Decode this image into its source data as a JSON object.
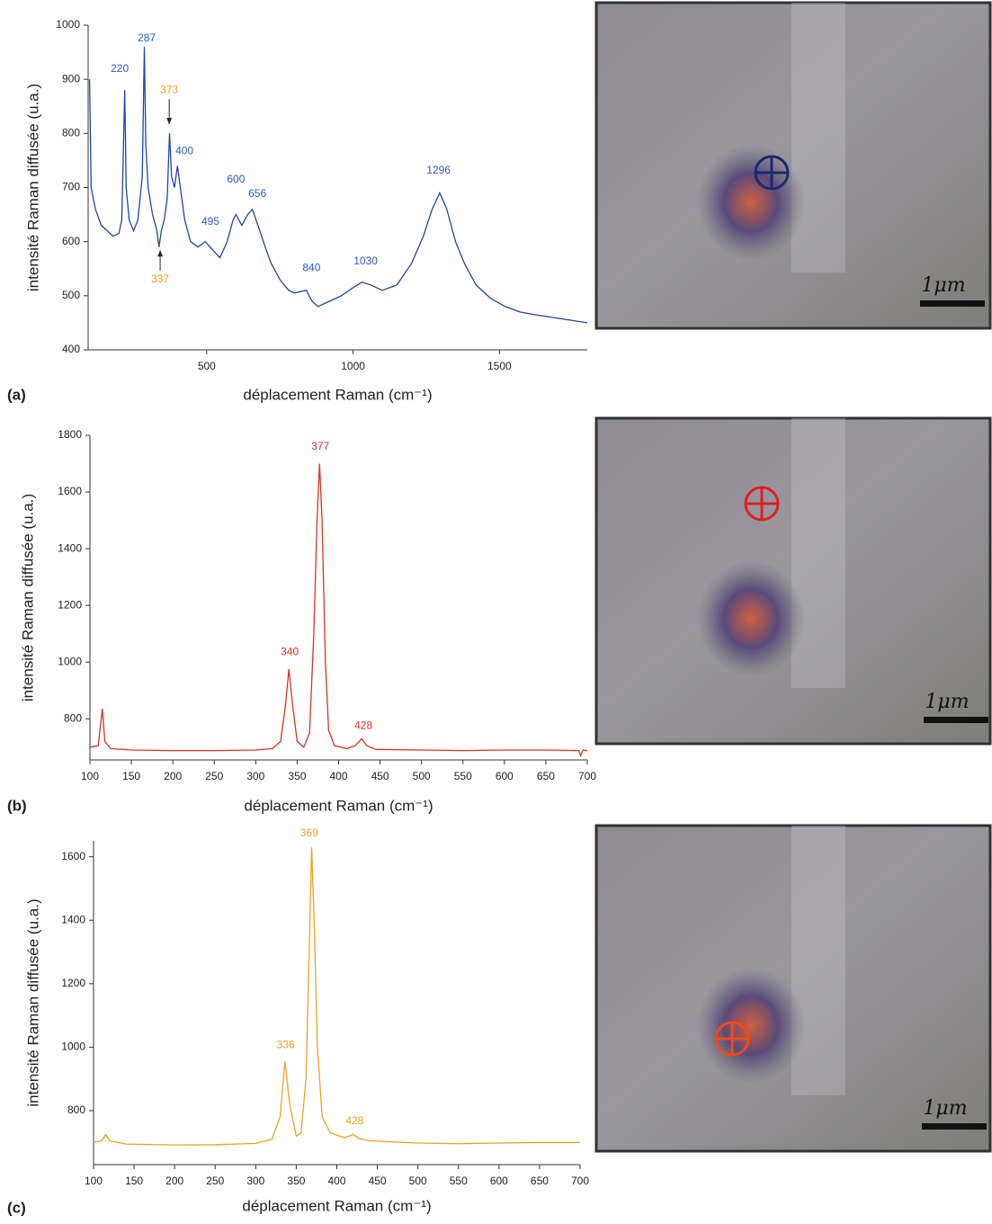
{
  "chart_data": [
    {
      "type": "line",
      "panel_label": "(a)",
      "y_label": "intensité Raman diffusée (u.a.)",
      "x_label": "déplacement Raman (cm⁻¹)",
      "xlim": [
        95,
        1800
      ],
      "ylim": [
        400,
        1000
      ],
      "xticks": [
        500,
        1000,
        1500
      ],
      "yticks": [
        400,
        500,
        600,
        700,
        800,
        900,
        1000
      ],
      "color": "#2244aa",
      "x": [
        100,
        105,
        120,
        140,
        160,
        180,
        200,
        210,
        220,
        225,
        235,
        250,
        265,
        280,
        287,
        292,
        300,
        315,
        330,
        337,
        345,
        355,
        365,
        373,
        380,
        390,
        400,
        410,
        425,
        445,
        470,
        495,
        520,
        545,
        570,
        590,
        600,
        620,
        640,
        656,
        675,
        700,
        720,
        750,
        780,
        800,
        840,
        860,
        880,
        920,
        960,
        1000,
        1030,
        1060,
        1100,
        1150,
        1200,
        1240,
        1270,
        1296,
        1320,
        1350,
        1380,
        1420,
        1470,
        1520,
        1570,
        1620,
        1680,
        1740,
        1800
      ],
      "values": [
        900,
        700,
        660,
        630,
        620,
        610,
        615,
        640,
        880,
        700,
        640,
        620,
        640,
        720,
        960,
        780,
        700,
        650,
        620,
        590,
        620,
        640,
        680,
        800,
        720,
        700,
        740,
        700,
        640,
        600,
        590,
        600,
        585,
        570,
        600,
        640,
        650,
        630,
        650,
        660,
        630,
        590,
        560,
        530,
        510,
        505,
        510,
        490,
        480,
        490,
        500,
        515,
        525,
        520,
        510,
        520,
        560,
        610,
        660,
        690,
        660,
        600,
        560,
        520,
        495,
        480,
        470,
        465,
        460,
        455,
        450
      ],
      "annotations": [
        {
          "text": "220",
          "x": 203,
          "y": 919,
          "color": "#2a5cc8"
        },
        {
          "text": "287",
          "x": 295,
          "y": 975,
          "color": "#2a5cc8"
        },
        {
          "text": "373",
          "x": 372,
          "y": 880,
          "color": "#f0a020",
          "arrow_to": 817
        },
        {
          "text": "400",
          "x": 424,
          "y": 767,
          "color": "#2a5cc8"
        },
        {
          "text": "495",
          "x": 513,
          "y": 636,
          "color": "#2a5cc8"
        },
        {
          "text": "600",
          "x": 600,
          "y": 714,
          "color": "#2a5cc8"
        },
        {
          "text": "656",
          "x": 673,
          "y": 688,
          "color": "#2a5cc8"
        },
        {
          "text": "840",
          "x": 858,
          "y": 551,
          "color": "#2a5cc8"
        },
        {
          "text": "1030",
          "x": 1043,
          "y": 563,
          "color": "#2a5cc8"
        },
        {
          "text": "1296",
          "x": 1292,
          "y": 731,
          "color": "#2a5cc8"
        },
        {
          "text": "337",
          "x": 341,
          "y": 530,
          "color": "#f0a020",
          "arrow_to": 584
        }
      ]
    },
    {
      "type": "line",
      "panel_label": "(b)",
      "y_label": "intensité Raman diffusée (u.a.)",
      "x_label": "déplacement Raman (cm⁻¹)",
      "xlim": [
        100,
        700
      ],
      "ylim": [
        655,
        1800
      ],
      "xticks": [
        100,
        150,
        200,
        250,
        300,
        350,
        400,
        450,
        500,
        550,
        600,
        650,
        700
      ],
      "yticks": [
        800,
        1000,
        1200,
        1400,
        1600,
        1800
      ],
      "color": "#e03020",
      "x": [
        100,
        110,
        115,
        118,
        125,
        150,
        200,
        250,
        300,
        320,
        330,
        336,
        340,
        344,
        350,
        358,
        365,
        370,
        374,
        377,
        380,
        384,
        388,
        395,
        410,
        420,
        428,
        434,
        445,
        500,
        550,
        600,
        650,
        690,
        692,
        695,
        700
      ],
      "values": [
        700,
        705,
        835,
        720,
        695,
        690,
        688,
        688,
        690,
        695,
        720,
        850,
        975,
        860,
        720,
        700,
        750,
        1100,
        1500,
        1700,
        1500,
        1000,
        760,
        705,
        695,
        705,
        730,
        705,
        692,
        690,
        688,
        690,
        690,
        688,
        670,
        690,
        688
      ],
      "annotations": [
        {
          "text": "377",
          "x": 378,
          "y": 1759,
          "color": "#e03020"
        },
        {
          "text": "340",
          "x": 341,
          "y": 1035,
          "color": "#e03020"
        },
        {
          "text": "428",
          "x": 430,
          "y": 775,
          "color": "#e03020"
        }
      ]
    },
    {
      "type": "line",
      "panel_label": "(c)",
      "y_label": "intensité Raman diffusée (u.a.)",
      "x_label": "déplacement Raman (cm⁻¹)",
      "xlim": [
        100,
        700
      ],
      "ylim": [
        630,
        1650
      ],
      "xticks": [
        100,
        150,
        200,
        250,
        300,
        350,
        400,
        450,
        500,
        550,
        600,
        650,
        700
      ],
      "yticks": [
        800,
        1000,
        1200,
        1400,
        1600
      ],
      "color": "#f0a020",
      "x": [
        100,
        110,
        115,
        120,
        140,
        200,
        250,
        300,
        320,
        330,
        336,
        342,
        350,
        356,
        362,
        366,
        369,
        372,
        376,
        382,
        392,
        410,
        420,
        428,
        440,
        500,
        550,
        600,
        650,
        700
      ],
      "values": [
        700,
        705,
        725,
        705,
        695,
        692,
        693,
        697,
        710,
        780,
        955,
        820,
        720,
        730,
        900,
        1300,
        1630,
        1400,
        1000,
        780,
        730,
        715,
        725,
        712,
        705,
        698,
        696,
        698,
        700,
        700
      ],
      "annotations": [
        {
          "text": "369",
          "x": 366,
          "y": 1673,
          "color": "#f0a020"
        },
        {
          "text": "336",
          "x": 337,
          "y": 1006,
          "color": "#f0a020"
        },
        {
          "text": "428",
          "x": 422,
          "y": 766,
          "color": "#f0a020"
        }
      ]
    }
  ],
  "micrographs": [
    {
      "scale_label": "1μm"
    },
    {
      "scale_label": "1μm"
    },
    {
      "scale_label": "1μm"
    }
  ]
}
